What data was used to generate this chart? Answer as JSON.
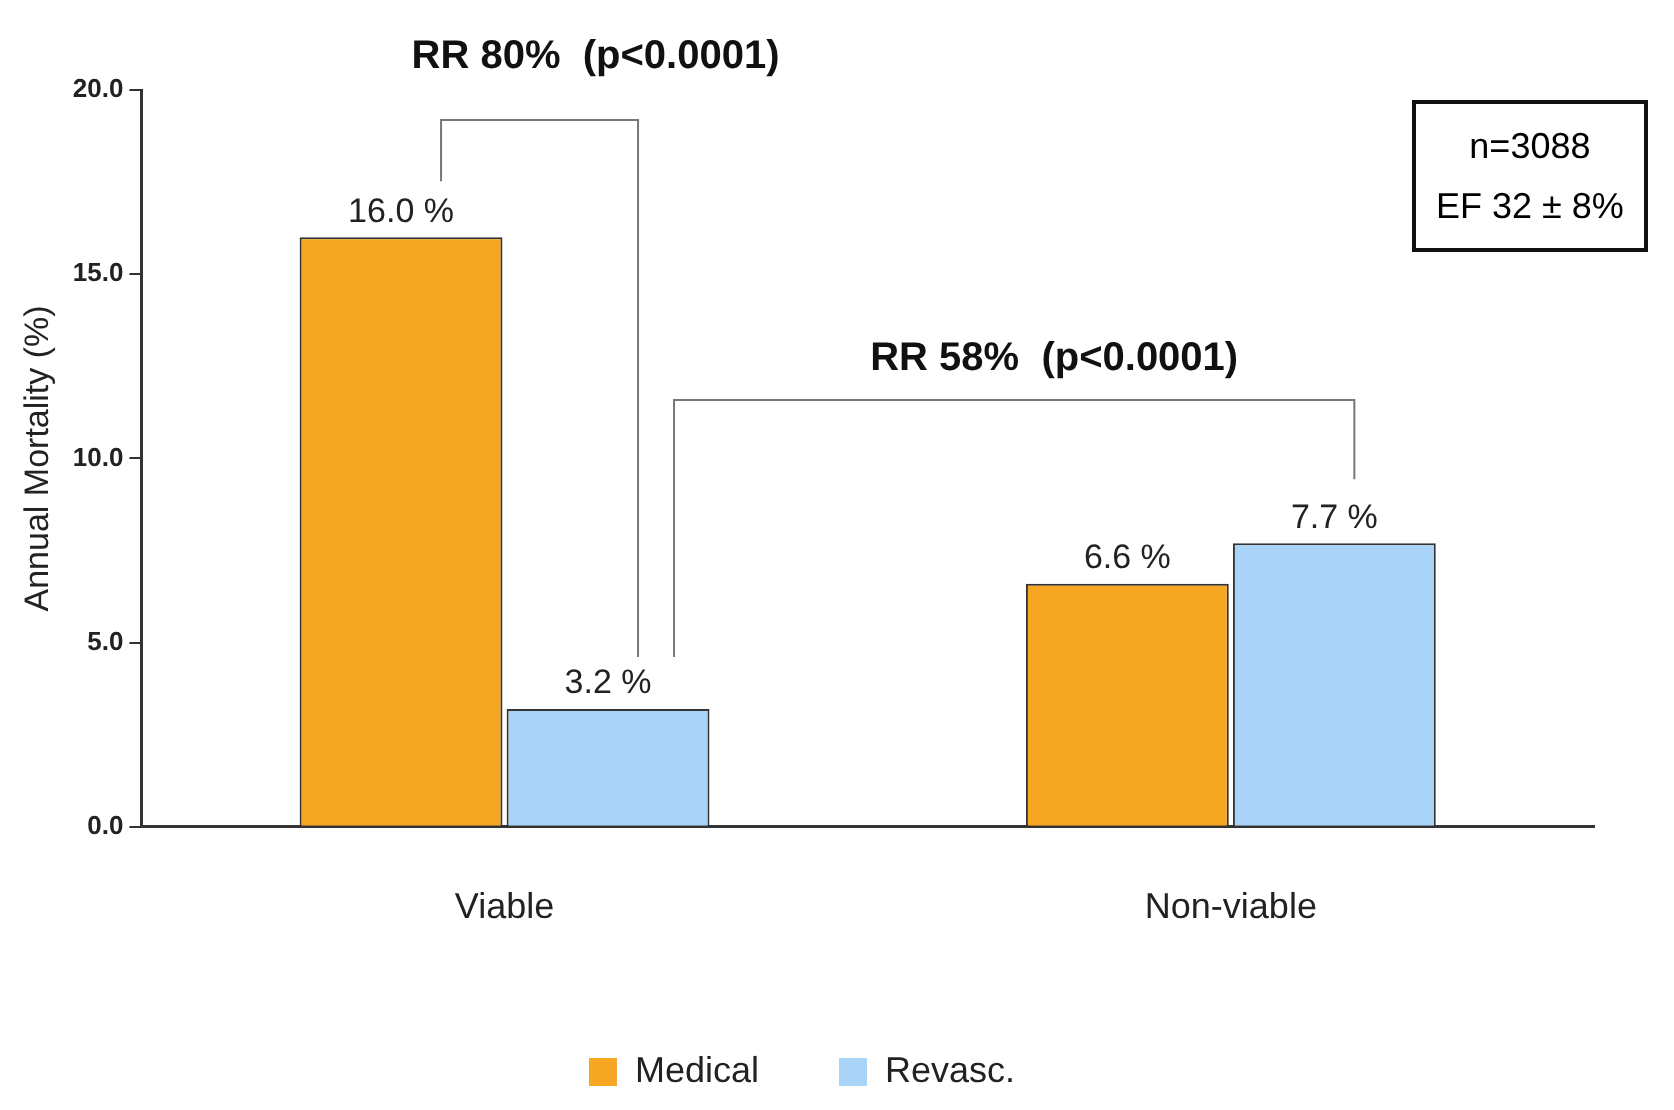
{
  "chart_data": {
    "type": "bar",
    "ylabel": "Annual Mortality (%)",
    "categories": [
      "Viable",
      "Non-viable"
    ],
    "series": [
      {
        "name": "Medical",
        "color": "#f5a623",
        "values": [
          16.0,
          6.6
        ],
        "value_labels": [
          "16.0 %",
          "6.6 %"
        ]
      },
      {
        "name": "Revasc.",
        "color": "#aad3f8",
        "values": [
          3.2,
          7.7
        ],
        "value_labels": [
          "3.2 %",
          "7.7 %"
        ]
      }
    ],
    "ylim": [
      0,
      20
    ],
    "yticks": [
      {
        "value": 0,
        "label": "0.0"
      },
      {
        "value": 5,
        "label": "5.0"
      },
      {
        "value": 10,
        "label": "10.0"
      },
      {
        "value": 15,
        "label": "15.0"
      },
      {
        "value": 20,
        "label": "20.0"
      }
    ],
    "grid": false,
    "legend": "bottom",
    "annotations": [
      "RR 80%  (p<0.0001)",
      "RR 58%  (p<0.0001)",
      "n=3088\nEF 32 ± 8%"
    ]
  }
}
